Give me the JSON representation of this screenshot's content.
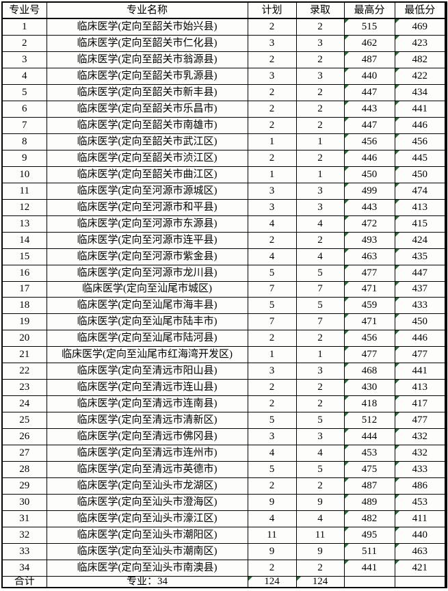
{
  "colors": {
    "triangle_green": "#1e6b2e",
    "border": "#000000",
    "cell_background": "#fdfdfb"
  },
  "table": {
    "headers": [
      "专业号",
      "专业名称",
      "计划",
      "录取",
      "最高分",
      "最低分"
    ],
    "triangles": {
      "data_row_columns": [
        "max",
        "min"
      ],
      "total_row_columns": [
        "plan",
        "admitted"
      ]
    },
    "rows": [
      {
        "no": "1",
        "name": "临床医学(定向至韶关市始兴县)",
        "plan": "2",
        "admitted": "2",
        "max": "515",
        "min": "469"
      },
      {
        "no": "2",
        "name": "临床医学(定向至韶关市仁化县)",
        "plan": "3",
        "admitted": "3",
        "max": "462",
        "min": "423"
      },
      {
        "no": "3",
        "name": "临床医学(定向至韶关市翁源县)",
        "plan": "2",
        "admitted": "2",
        "max": "487",
        "min": "482"
      },
      {
        "no": "4",
        "name": "临床医学(定向至韶关市乳源县)",
        "plan": "3",
        "admitted": "3",
        "max": "440",
        "min": "422"
      },
      {
        "no": "5",
        "name": "临床医学(定向至韶关市新丰县)",
        "plan": "2",
        "admitted": "2",
        "max": "447",
        "min": "434"
      },
      {
        "no": "6",
        "name": "临床医学(定向至韶关市乐昌市)",
        "plan": "2",
        "admitted": "2",
        "max": "443",
        "min": "441"
      },
      {
        "no": "7",
        "name": "临床医学(定向至韶关市南雄市)",
        "plan": "2",
        "admitted": "2",
        "max": "447",
        "min": "446"
      },
      {
        "no": "8",
        "name": "临床医学(定向至韶关市武江区)",
        "plan": "1",
        "admitted": "1",
        "max": "456",
        "min": "456"
      },
      {
        "no": "9",
        "name": "临床医学(定向至韶关市浈江区)",
        "plan": "2",
        "admitted": "2",
        "max": "446",
        "min": "445"
      },
      {
        "no": "10",
        "name": "临床医学(定向至韶关市曲江区)",
        "plan": "1",
        "admitted": "1",
        "max": "450",
        "min": "450"
      },
      {
        "no": "11",
        "name": "临床医学(定向至河源市源城区)",
        "plan": "3",
        "admitted": "3",
        "max": "499",
        "min": "474"
      },
      {
        "no": "12",
        "name": "临床医学(定向至河源市和平县)",
        "plan": "3",
        "admitted": "3",
        "max": "443",
        "min": "413"
      },
      {
        "no": "13",
        "name": "临床医学(定向至河源市东源县)",
        "plan": "4",
        "admitted": "4",
        "max": "472",
        "min": "415"
      },
      {
        "no": "14",
        "name": "临床医学(定向至河源市连平县)",
        "plan": "2",
        "admitted": "2",
        "max": "493",
        "min": "424"
      },
      {
        "no": "15",
        "name": "临床医学(定向至河源市紫金县)",
        "plan": "4",
        "admitted": "4",
        "max": "463",
        "min": "435"
      },
      {
        "no": "16",
        "name": "临床医学(定向至河源市龙川县)",
        "plan": "5",
        "admitted": "5",
        "max": "477",
        "min": "447"
      },
      {
        "no": "17",
        "name": "临床医学(定向至汕尾市城区)",
        "plan": "7",
        "admitted": "7",
        "max": "471",
        "min": "437"
      },
      {
        "no": "18",
        "name": "临床医学(定向至汕尾市海丰县)",
        "plan": "5",
        "admitted": "5",
        "max": "459",
        "min": "433"
      },
      {
        "no": "19",
        "name": "临床医学(定向至汕尾市陆丰市)",
        "plan": "7",
        "admitted": "7",
        "max": "471",
        "min": "450"
      },
      {
        "no": "20",
        "name": "临床医学(定向至汕尾市陆河县)",
        "plan": "2",
        "admitted": "2",
        "max": "456",
        "min": "446"
      },
      {
        "no": "21",
        "name": "临床医学(定向至汕尾市红海湾开发区)",
        "plan": "1",
        "admitted": "1",
        "max": "477",
        "min": "477"
      },
      {
        "no": "22",
        "name": "临床医学(定向至清远市阳山县)",
        "plan": "3",
        "admitted": "3",
        "max": "468",
        "min": "441"
      },
      {
        "no": "23",
        "name": "临床医学(定向至清远市连山县)",
        "plan": "2",
        "admitted": "2",
        "max": "430",
        "min": "413"
      },
      {
        "no": "24",
        "name": "临床医学(定向至清远市连南县)",
        "plan": "2",
        "admitted": "2",
        "max": "418",
        "min": "417"
      },
      {
        "no": "25",
        "name": "临床医学(定向至清远市清新区)",
        "plan": "5",
        "admitted": "5",
        "max": "512",
        "min": "477"
      },
      {
        "no": "26",
        "name": "临床医学(定向至清远市佛冈县)",
        "plan": "3",
        "admitted": "3",
        "max": "444",
        "min": "432"
      },
      {
        "no": "27",
        "name": "临床医学(定向至清远市连州市)",
        "plan": "4",
        "admitted": "4",
        "max": "453",
        "min": "432"
      },
      {
        "no": "28",
        "name": "临床医学(定向至清远市英德市)",
        "plan": "5",
        "admitted": "5",
        "max": "475",
        "min": "433"
      },
      {
        "no": "29",
        "name": "临床医学(定向至汕头市龙湖区)",
        "plan": "2",
        "admitted": "2",
        "max": "487",
        "min": "486"
      },
      {
        "no": "30",
        "name": "临床医学(定向至汕头市澄海区)",
        "plan": "9",
        "admitted": "9",
        "max": "489",
        "min": "453"
      },
      {
        "no": "31",
        "name": "临床医学(定向至汕头市濠江区)",
        "plan": "4",
        "admitted": "4",
        "max": "482",
        "min": "411"
      },
      {
        "no": "32",
        "name": "临床医学(定向至汕头市潮阳区)",
        "plan": "11",
        "admitted": "11",
        "max": "495",
        "min": "440"
      },
      {
        "no": "33",
        "name": "临床医学(定向至汕头市潮南区)",
        "plan": "9",
        "admitted": "9",
        "max": "511",
        "min": "463"
      },
      {
        "no": "34",
        "name": "临床医学(定向至汕头市南澳县)",
        "plan": "2",
        "admitted": "2",
        "max": "441",
        "min": "421"
      }
    ],
    "total": {
      "label": "合计",
      "name": "专业：34",
      "plan": "124",
      "admitted": "124",
      "max": "",
      "min": ""
    }
  }
}
